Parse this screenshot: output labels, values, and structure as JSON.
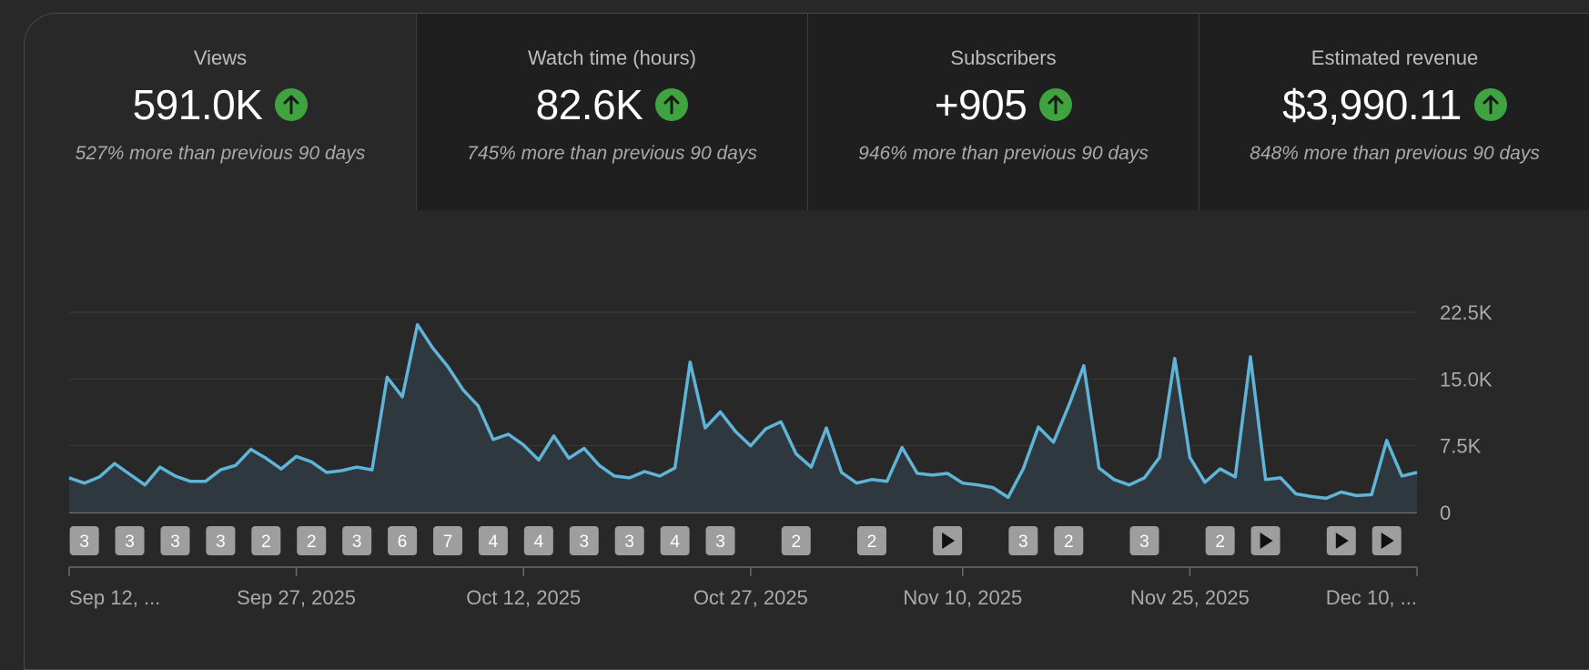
{
  "metrics": [
    {
      "label": "Views",
      "value": "591.0K",
      "change": "527% more than previous 90 days",
      "selected": true
    },
    {
      "label": "Watch time (hours)",
      "value": "82.6K",
      "change": "745% more than previous 90 days",
      "selected": false
    },
    {
      "label": "Subscribers",
      "value": "+905",
      "change": "946% more than previous 90 days",
      "selected": false
    },
    {
      "label": "Estimated revenue",
      "value": "$3,990.11",
      "change": "848% more than previous 90 days",
      "selected": false
    }
  ],
  "colors": {
    "line": "#5fb4d8",
    "area": "#2f3a40",
    "up": "#3fa33f",
    "marker": "#9e9e9e"
  },
  "icons": {
    "trend": "arrow-up-icon",
    "video": "play-icon"
  },
  "chart_data": {
    "type": "area",
    "ylim": [
      0,
      22500
    ],
    "yticks": [
      {
        "value": 0,
        "label": "0"
      },
      {
        "value": 7500,
        "label": "7.5K"
      },
      {
        "value": 15000,
        "label": "15.0K"
      },
      {
        "value": 22500,
        "label": "22.5K"
      }
    ],
    "xticks": [
      {
        "index": 0,
        "label": "Sep 12, ..."
      },
      {
        "index": 15,
        "label": "Sep 27, 2025"
      },
      {
        "index": 30,
        "label": "Oct 12, 2025"
      },
      {
        "index": 45,
        "label": "Oct 27, 2025"
      },
      {
        "index": 59,
        "label": "Nov 10, 2025"
      },
      {
        "index": 74,
        "label": "Nov 25, 2025"
      },
      {
        "index": 89,
        "label": "Dec 10, ..."
      }
    ],
    "series": [
      {
        "values": [
          3900,
          3300,
          4000,
          5500,
          4300,
          3100,
          5100,
          4100,
          3500,
          3500,
          4800,
          5300,
          7100,
          6100,
          4900,
          6300,
          5700,
          4500,
          4700,
          5100,
          4800,
          15200,
          13000,
          21100,
          18500,
          16400,
          13800,
          12000,
          8200,
          8800,
          7600,
          5900,
          8600,
          6100,
          7200,
          5300,
          4100,
          3900,
          4600,
          4100,
          5000,
          16900,
          9500,
          11300,
          9100,
          7500,
          9400,
          10200,
          6600,
          5100,
          9500,
          4500,
          3300,
          3700,
          3500,
          7300,
          4400,
          4200,
          4400,
          3300,
          3100,
          2800,
          1700,
          4900,
          9600,
          7900,
          12000,
          16500,
          5000,
          3700,
          3100,
          3900,
          6200,
          17300,
          6200,
          3400,
          4900,
          4000,
          17500,
          3700,
          3900,
          2100,
          1800,
          1600,
          2300,
          1900,
          2000,
          8100,
          4100,
          4500
        ]
      }
    ],
    "markers": [
      {
        "index": 1,
        "label": "3"
      },
      {
        "index": 4,
        "label": "3"
      },
      {
        "index": 7,
        "label": "3"
      },
      {
        "index": 10,
        "label": "3"
      },
      {
        "index": 13,
        "label": "2"
      },
      {
        "index": 16,
        "label": "2"
      },
      {
        "index": 19,
        "label": "3"
      },
      {
        "index": 22,
        "label": "6"
      },
      {
        "index": 25,
        "label": "7"
      },
      {
        "index": 28,
        "label": "4"
      },
      {
        "index": 31,
        "label": "4"
      },
      {
        "index": 34,
        "label": "3"
      },
      {
        "index": 37,
        "label": "3"
      },
      {
        "index": 40,
        "label": "4"
      },
      {
        "index": 43,
        "label": "3"
      },
      {
        "index": 48,
        "label": "2"
      },
      {
        "index": 53,
        "label": "2"
      },
      {
        "index": 58,
        "label": ""
      },
      {
        "index": 63,
        "label": "3"
      },
      {
        "index": 66,
        "label": "2"
      },
      {
        "index": 71,
        "label": "3"
      },
      {
        "index": 76,
        "label": "2"
      },
      {
        "index": 79,
        "label": ""
      },
      {
        "index": 84,
        "label": ""
      },
      {
        "index": 87,
        "label": ""
      }
    ]
  }
}
